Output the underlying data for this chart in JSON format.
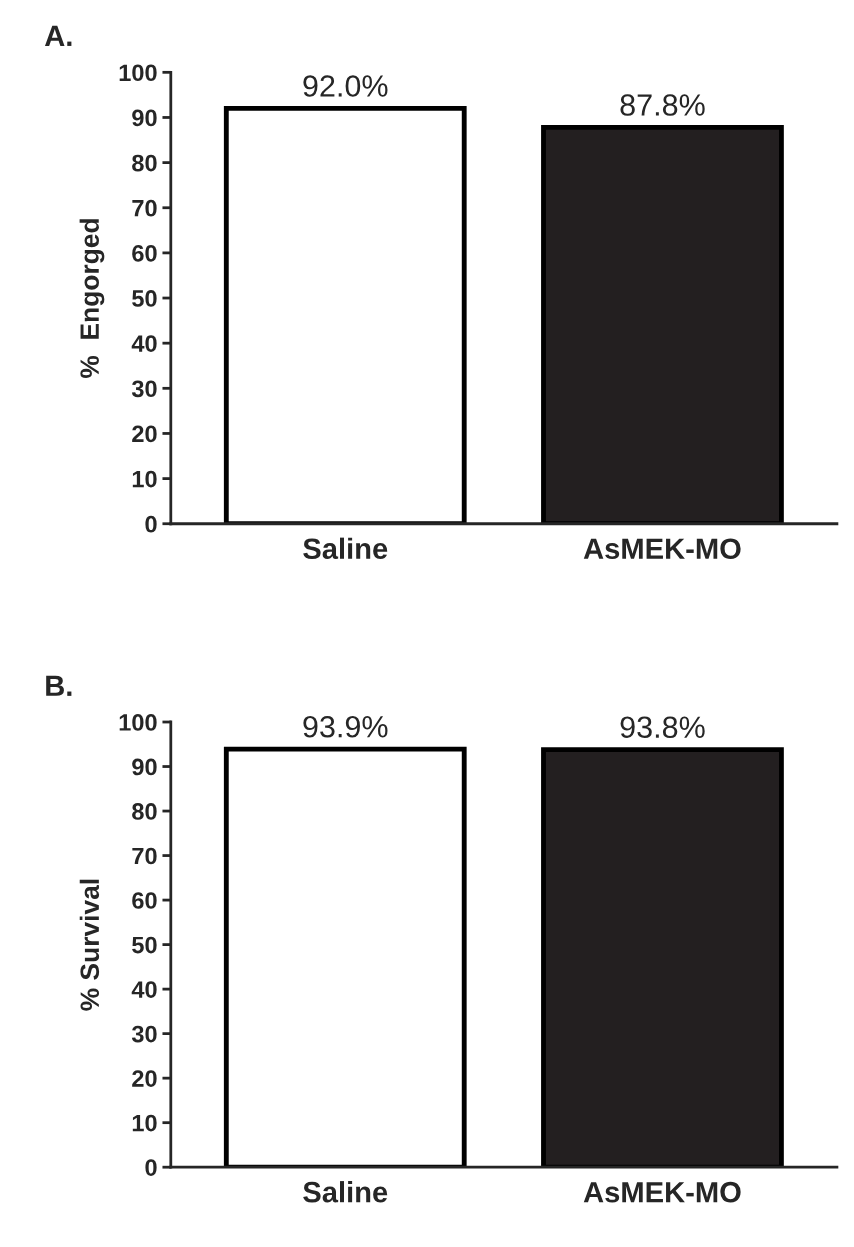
{
  "chart_data": [
    {
      "type": "bar",
      "title": "A.",
      "ylabel": "%  Engorged",
      "categories": [
        "Saline",
        "AsMEK-MO"
      ],
      "values": [
        92.0,
        87.8
      ],
      "colors": [
        "#ffffff",
        "#231f20"
      ],
      "value_labels": [
        "92.0%",
        "87.8%"
      ],
      "ylim": [
        0,
        100
      ],
      "yticks": [
        0,
        10,
        20,
        30,
        40,
        50,
        60,
        70,
        80,
        90,
        100
      ],
      "grid": false,
      "legend": false
    },
    {
      "type": "bar",
      "title": "B.",
      "ylabel": "% Survival",
      "categories": [
        "Saline",
        "AsMEK-MO"
      ],
      "values": [
        93.9,
        93.8
      ],
      "colors": [
        "#ffffff",
        "#231f20"
      ],
      "value_labels": [
        "93.9%",
        "93.8%"
      ],
      "ylim": [
        0,
        100
      ],
      "yticks": [
        0,
        10,
        20,
        30,
        40,
        50,
        60,
        70,
        80,
        90,
        100
      ],
      "grid": false,
      "legend": false
    }
  ]
}
